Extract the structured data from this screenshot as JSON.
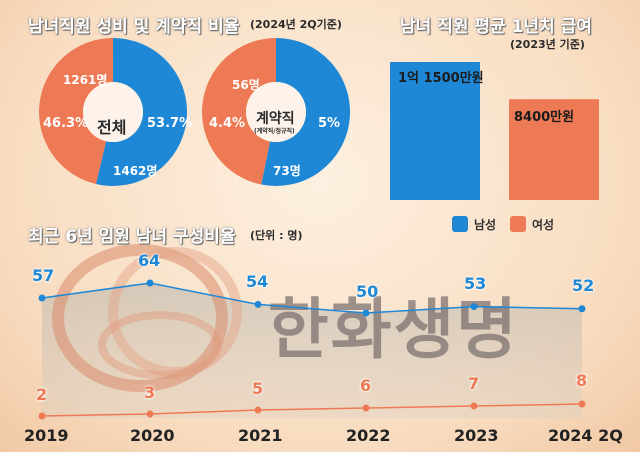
{
  "titles": {
    "ratio": "남녀직원 성비 및 계약직 비율",
    "ratio_note": "(2024년 2Q기준)",
    "salary": "남녀 직원 평균 1년치 급여",
    "salary_note": "(2023년 기준)",
    "trend": "최근 6년 임원 남녀 구성비율",
    "trend_note": "(단위 : 명)"
  },
  "watermark": "한화생명",
  "colors": {
    "male": "#1e88d6",
    "female": "#ee7a55"
  },
  "chart_data": [
    {
      "type": "pie",
      "donut": true,
      "center_label": "전체",
      "slices": [
        {
          "name": "남성",
          "percent": 53.7,
          "count": "1462명",
          "percent_label": "53.7%"
        },
        {
          "name": "여성",
          "percent": 46.3,
          "count": "1261명",
          "percent_label": "46.3%"
        }
      ]
    },
    {
      "type": "pie",
      "donut": true,
      "center_label": "계약직",
      "center_sub": "(계약직/정규직)",
      "slices": [
        {
          "name": "남성",
          "percent": 5,
          "count": "73명",
          "percent_label": "5%"
        },
        {
          "name": "여성",
          "percent": 4.4,
          "count": "56명",
          "percent_label": "4.4%"
        }
      ]
    },
    {
      "type": "bar",
      "categories": [
        "남성",
        "여성"
      ],
      "values": [
        11500,
        8400
      ],
      "value_labels": [
        "1억 1500만원",
        "8400만원"
      ],
      "legend": [
        "남성",
        "여성"
      ],
      "legend_position": "bottom"
    },
    {
      "type": "line",
      "x": [
        "2019",
        "2020",
        "2021",
        "2022",
        "2023",
        "2024 2Q"
      ],
      "series": [
        {
          "name": "남성",
          "values": [
            57,
            64,
            54,
            50,
            53,
            52
          ]
        },
        {
          "name": "여성",
          "values": [
            2,
            3,
            5,
            6,
            7,
            8
          ]
        }
      ]
    }
  ]
}
